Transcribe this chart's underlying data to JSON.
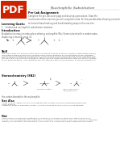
{
  "title": "Nucleophilic Substitution",
  "bg_color": "#f5f5f0",
  "page_bg": "#ffffff",
  "pdf_bg": "#cc2200",
  "pdf_text": "PDF",
  "body_text_color": "#333333",
  "light_text_color": "#555555",
  "gray_text": "#888888",
  "heading1": "Pre-Lab Assignment:",
  "heading1_body": "Complete the pre-lab cover page and develop a procedure. Draw the\nmechanism of the reaction you will complete in lab. For the pre-lab allow showing connections\nto show all bond making and bond breaking steps in the reaction.",
  "heading2": "Learning Goals:",
  "learning_goals": "1.   Understand nucleophilic substitution reactions.",
  "heading3": "Introduction:",
  "intro_text": "A substitution reaction takes place where a nucleophile (Nu:) forms a bond with a carbon atom,\ndisplacing a leaving group (L).",
  "heading4": "Skill",
  "skill_text": "Leaving groups are typically weak Bronsted bases that are stable in solution (often halide anions).\nThe precise timing of when the leaving group leaves depends on the structure of the substrate,\nthe molecule bearing the leaving group. Steric and electronic effects dictate tend to undergo SN2\ntype reactions. In this type of reaction, the nucleophile attacks the carbon from the side opposite\nthe leaving group and the nucleophile-carbon bond is made simultaneous with the carbon-leaving\ngroup bond breaking.  SN2 reactions are one step and there is an inversion of stereochemistry at",
  "heading5": "Stereochemistry (SN2)",
  "ts_label": "Transition State",
  "stereo_label": "Trans. Inversion of\nStereochemistry",
  "heading6": "See Also",
  "see_also_text": "Atkins & Paula, Pages 373-374 and appropriate reaction handouts (experiment/SBU files\nunder E-book).\nAdditional notes in separate chapter 1 in the handouts section of this course website.",
  "heading7": "Hint",
  "hint_text": "If the carbon undergoing substitution is chemically hindered on either side with tertiary alkyl\ngroups, or if the intermediate carbocation is relatively stable, tertiary alkyl (or resonance stabilized\ncations) SN1 reactions are prevalent. In this case, the nucleophile cannot approach the carbon"
}
